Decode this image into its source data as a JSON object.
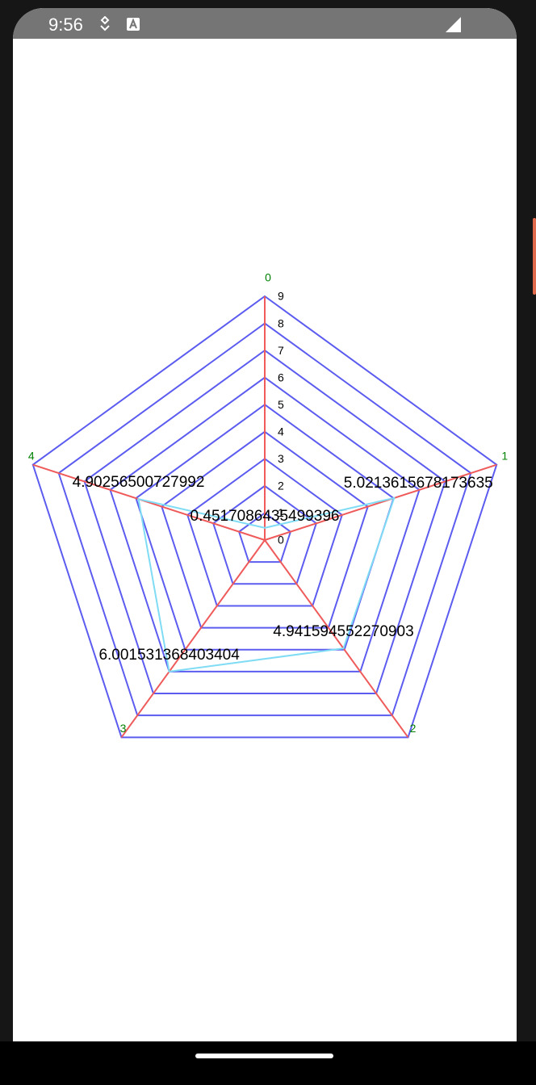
{
  "status_bar": {
    "time": "9:56",
    "icons": [
      "location-pin-icon",
      "keyboard-a-icon",
      "signal-icon"
    ]
  },
  "colors": {
    "grid": "#5c5cf0",
    "axes": "#ef5b5b",
    "series": "#7fdcf4",
    "axis_label": "#008000",
    "status_bar": "#757575"
  },
  "chart_data": {
    "type": "radar",
    "axes": [
      "0",
      "1",
      "2",
      "3",
      "4"
    ],
    "scale_ticks": [
      "0",
      "1",
      "2",
      "3",
      "4",
      "5",
      "6",
      "7",
      "8",
      "9"
    ],
    "rmax": 9,
    "series": [
      {
        "values": [
          0.4517086435499396,
          5.0213615678173635,
          4.941594552270903,
          6.001531368403404,
          4.90256500727992
        ],
        "labels": [
          "0.4517086435499396",
          "5.0213615678173635",
          "4.941594552270903",
          "6.001531368403404",
          "4.90256500727992"
        ]
      }
    ]
  }
}
